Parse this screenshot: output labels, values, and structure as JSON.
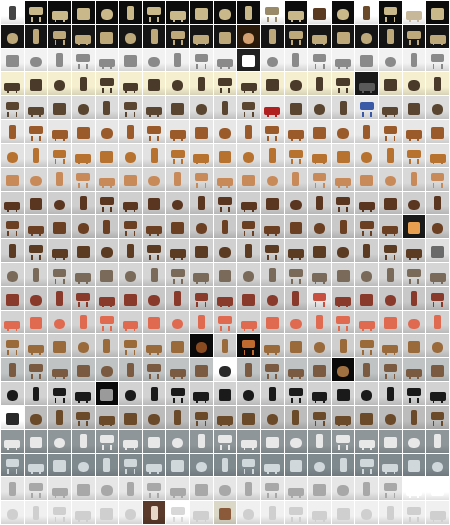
{
  "grid": {
    "columns": 19,
    "rows": 22,
    "tile_count": 418
  },
  "row_themes": [
    {
      "bg": "#0c0c0c",
      "obj": "#c9b88a"
    },
    {
      "bg": "#151515",
      "obj": "#bda97a"
    },
    {
      "bg": "#f2f2f2",
      "obj": "#8a8a8a"
    },
    {
      "bg": "#f5efd0",
      "obj": "#4a3a2a"
    },
    {
      "bg": "#dcdcdc",
      "obj": "#5a4630"
    },
    {
      "bg": "#e7e7e7",
      "obj": "#9b5a2a"
    },
    {
      "bg": "#e2e2e2",
      "obj": "#b8722f"
    },
    {
      "bg": "#d8d8d8",
      "obj": "#c98a5a"
    },
    {
      "bg": "#cfcfcf",
      "obj": "#5a3520"
    },
    {
      "bg": "#c9c9c9",
      "obj": "#6b3f22"
    },
    {
      "bg": "#d0d0d0",
      "obj": "#5b3b22"
    },
    {
      "bg": "#d5d5d5",
      "obj": "#7a6a5a"
    },
    {
      "bg": "#c8c8c8",
      "obj": "#8a3a2a"
    },
    {
      "bg": "#d3d3d3",
      "obj": "#e06a50"
    },
    {
      "bg": "#cfcfcf",
      "obj": "#9a6a3a"
    },
    {
      "bg": "#bfc3c4",
      "obj": "#7a5a40"
    },
    {
      "bg": "#d2d2d2",
      "obj": "#1a1a1a"
    },
    {
      "bg": "#bcbcbc",
      "obj": "#6b4a2a"
    },
    {
      "bg": "#8e969a",
      "obj": "#e8e8e8"
    },
    {
      "bg": "#7f8a8f",
      "obj": "#d0d8dc"
    },
    {
      "bg": "#e6e6e6",
      "obj": "#a8a8a8"
    },
    {
      "bg": "#f0f0f0",
      "obj": "#cfcfcf"
    }
  ],
  "accent_overrides": [
    {
      "row": 0,
      "col": 0,
      "bg": "#ffffff",
      "obj": "#444444"
    },
    {
      "row": 0,
      "col": 11,
      "bg": "#ffffff",
      "obj": "#9a8a6a"
    },
    {
      "row": 0,
      "col": 13,
      "bg": "#ffffff",
      "obj": "#5a3a20"
    },
    {
      "row": 0,
      "col": 15,
      "bg": "#ffffff",
      "obj": "#6b4a2a"
    },
    {
      "row": 0,
      "col": 17,
      "bg": "#ffffff",
      "obj": "#c8b89a"
    },
    {
      "row": 1,
      "col": 10,
      "bg": "#2a1a0a",
      "obj": "#d4a070"
    },
    {
      "row": 2,
      "col": 10,
      "bg": "#222222",
      "obj": "#ffffff"
    },
    {
      "row": 3,
      "col": 15,
      "bg": "#1a1a1a",
      "obj": "#5a5a5a"
    },
    {
      "row": 4,
      "col": 11,
      "bg": "#e8e8e8",
      "obj": "#b02020"
    },
    {
      "row": 4,
      "col": 15,
      "bg": "#e8e8e8",
      "obj": "#3a5aa8"
    },
    {
      "row": 9,
      "col": 17,
      "bg": "#1a1a1a",
      "obj": "#e8a050"
    },
    {
      "row": 10,
      "col": 18,
      "bg": "#e0e0e0",
      "obj": "#6a6a6a"
    },
    {
      "row": 12,
      "col": 13,
      "bg": "#e8e8e8",
      "obj": "#c85040"
    },
    {
      "row": 14,
      "col": 8,
      "bg": "#0a0a0a",
      "obj": "#8a4a20"
    },
    {
      "row": 14,
      "col": 10,
      "bg": "#0a0a0a",
      "obj": "#c06a30"
    },
    {
      "row": 15,
      "col": 9,
      "bg": "#ffffff",
      "obj": "#2a2a2a"
    },
    {
      "row": 15,
      "col": 14,
      "bg": "#0a0a0a",
      "obj": "#a07040"
    },
    {
      "row": 16,
      "col": 4,
      "bg": "#0a0a0a",
      "obj": "#9a9a9a"
    },
    {
      "row": 17,
      "col": 0,
      "bg": "#ffffff",
      "obj": "#2a2a2a"
    },
    {
      "row": 20,
      "col": 17,
      "bg": "#ffffff",
      "obj": "#ffffff"
    },
    {
      "row": 20,
      "col": 18,
      "bg": "#ffffff",
      "obj": "#ffffff"
    },
    {
      "row": 21,
      "col": 6,
      "bg": "#5a3a2a",
      "obj": "#e8d8c8"
    },
    {
      "row": 21,
      "col": 7,
      "bg": "#ffffff",
      "obj": "#d8d8d8"
    },
    {
      "row": 21,
      "col": 9,
      "bg": "#dcd8c8",
      "obj": "#8a5a3a"
    }
  ]
}
